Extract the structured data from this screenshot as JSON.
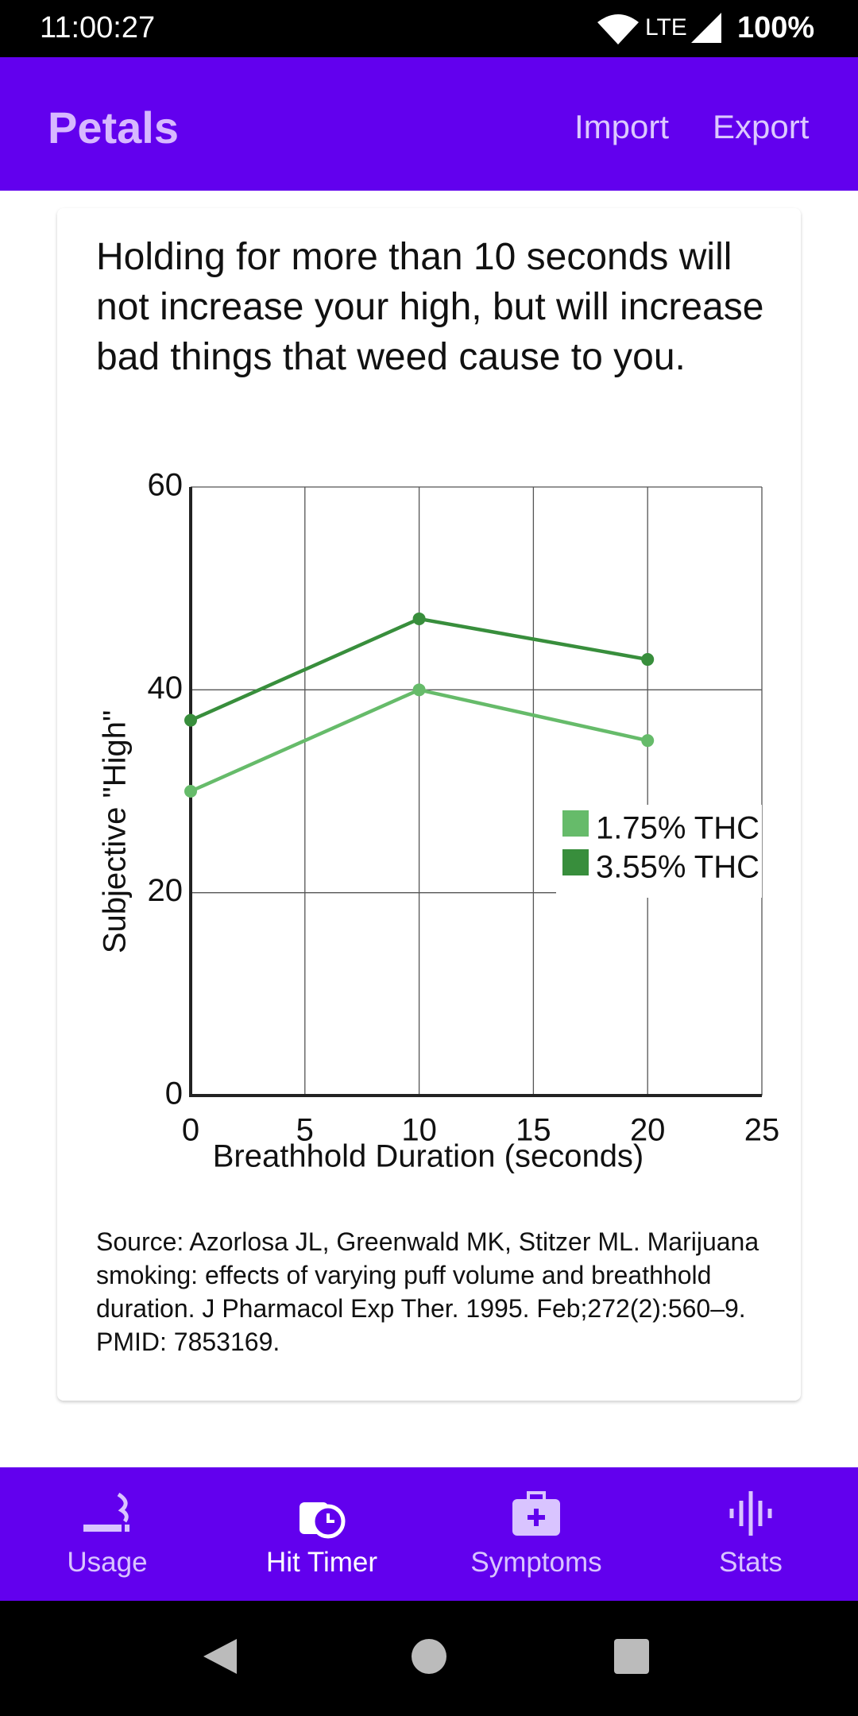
{
  "status_bar": {
    "time": "11:00:27",
    "network": "LTE",
    "battery": "100%"
  },
  "app_bar": {
    "title": "Petals",
    "actions": [
      "Import",
      "Export"
    ]
  },
  "card": {
    "text": "Holding for more than 10 seconds will not increase your high, but will increase bad things that weed cause to you.",
    "source": "Source: Azorlosa JL, Greenwald MK, Stitzer ML. Marijuana smoking: effects of varying puff volume and breathhold duration. J Pharmacol Exp Ther. 1995. Feb;272(2):560–9. PMID: 7853169."
  },
  "chart_data": {
    "type": "line",
    "x_label": "Breathhold Duration (seconds)",
    "y_label": "Subjective \"High\"",
    "x": [
      0,
      10,
      20
    ],
    "series": [
      {
        "name": "1.75% THC",
        "color": "#66bb6a",
        "values": [
          30,
          40,
          35
        ]
      },
      {
        "name": "3.55% THC",
        "color": "#388e3c",
        "values": [
          37,
          47,
          43
        ]
      }
    ],
    "xlim": [
      0,
      25
    ],
    "xticks": [
      0,
      5,
      10,
      15,
      20,
      25
    ],
    "ylim": [
      0,
      60
    ],
    "yticks": [
      0,
      20,
      40,
      60
    ],
    "grid": true
  },
  "bottom_nav": {
    "items": [
      "Usage",
      "Hit Timer",
      "Symptoms",
      "Stats"
    ],
    "selected": 1
  }
}
